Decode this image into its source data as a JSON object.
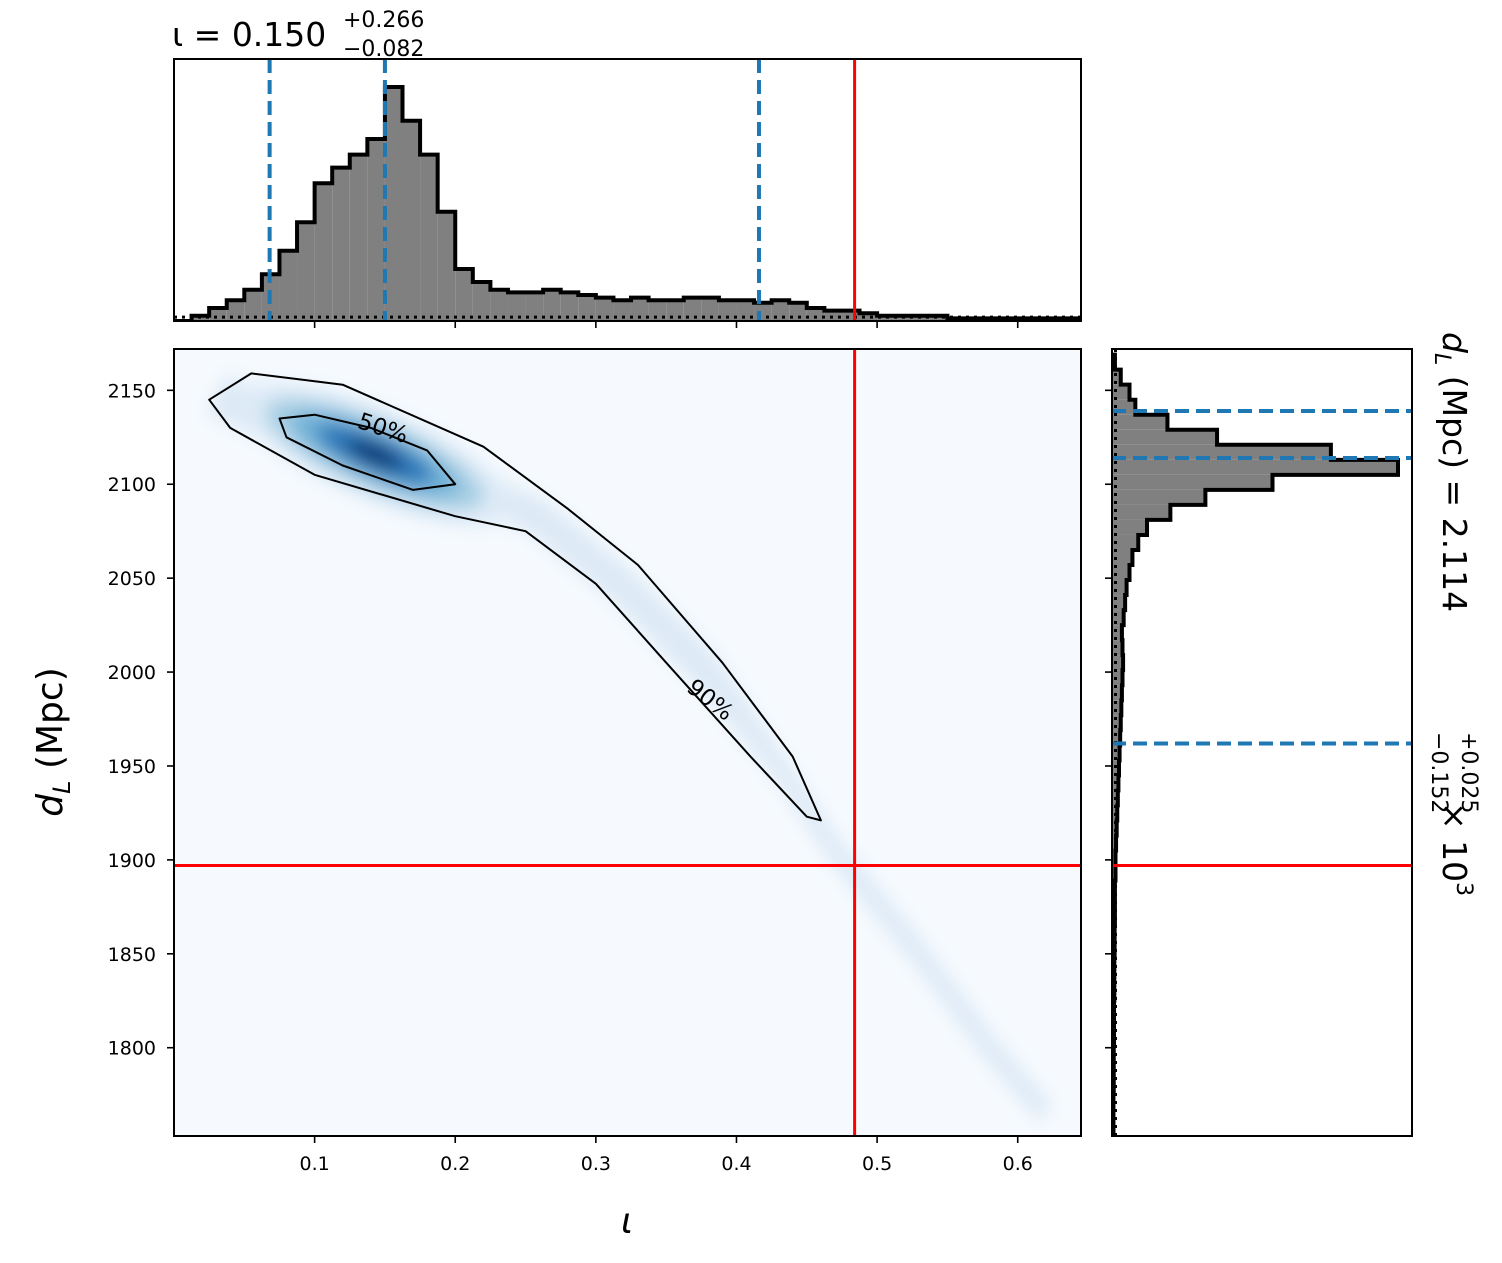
{
  "chart_data": {
    "type": "corner",
    "x_param": {
      "symbol": "ι",
      "label": "ι",
      "median": "0.150",
      "upper": "+0.266",
      "lower": "−0.082",
      "xlim": [
        0.0,
        0.645
      ],
      "ticks": [
        0.1,
        0.2,
        0.3,
        0.4,
        0.5,
        0.6
      ],
      "tick_labels": [
        "0.1",
        "0.2",
        "0.3",
        "0.4",
        "0.5",
        "0.6"
      ],
      "quantile_lines": [
        0.068,
        0.15,
        0.416
      ],
      "true_value": 0.484,
      "hist_bin_edges": [
        0.0,
        0.0125,
        0.025,
        0.0375,
        0.05,
        0.0625,
        0.075,
        0.0875,
        0.1,
        0.1125,
        0.125,
        0.1375,
        0.15,
        0.1625,
        0.175,
        0.1875,
        0.2,
        0.2125,
        0.225,
        0.2375,
        0.25,
        0.2625,
        0.275,
        0.2875,
        0.3,
        0.3125,
        0.325,
        0.3375,
        0.35,
        0.3625,
        0.375,
        0.3875,
        0.4,
        0.4125,
        0.425,
        0.4375,
        0.45,
        0.4625,
        0.475,
        0.4875,
        0.5,
        0.5125,
        0.525,
        0.5375,
        0.55,
        0.5625,
        0.575,
        0.5875,
        0.6,
        0.6125,
        0.625,
        0.6375,
        0.645
      ],
      "hist_counts": [
        0.0,
        0.02,
        0.05,
        0.08,
        0.12,
        0.18,
        0.27,
        0.38,
        0.53,
        0.59,
        0.64,
        0.7,
        0.9,
        0.77,
        0.64,
        0.42,
        0.2,
        0.15,
        0.12,
        0.11,
        0.11,
        0.12,
        0.11,
        0.1,
        0.09,
        0.08,
        0.09,
        0.08,
        0.08,
        0.09,
        0.09,
        0.08,
        0.08,
        0.07,
        0.08,
        0.07,
        0.05,
        0.04,
        0.04,
        0.03,
        0.02,
        0.02,
        0.02,
        0.02,
        0.01,
        0.01,
        0.01,
        0.01,
        0.01,
        0.01,
        0.01,
        0.01
      ],
      "prior_level": 0.015
    },
    "y_param": {
      "label_symbol": "d",
      "label_sub": "L",
      "label_unit": " (Mpc)",
      "right_label_main": "d",
      "right_label_sub": "L",
      "right_label_unit": " (Mpc) = 2.114",
      "right_upper": "+0.025",
      "right_lower": "−0.152",
      "right_scale": " × 10",
      "right_exp": "3",
      "ylim": [
        1753,
        2172
      ],
      "ticks": [
        1800,
        1850,
        1900,
        1950,
        2000,
        2050,
        2100,
        2150
      ],
      "tick_labels": [
        "1800",
        "1850",
        "1900",
        "1950",
        "2000",
        "2050",
        "2100",
        "2150"
      ],
      "quantile_lines": [
        2139,
        2114,
        1962
      ],
      "true_value": 1897,
      "hist_bin_edges": [
        1753,
        1761,
        1769,
        1777,
        1785,
        1793,
        1801,
        1809,
        1817,
        1825,
        1833,
        1841,
        1849,
        1857,
        1865,
        1873,
        1881,
        1889,
        1897,
        1905,
        1913,
        1921,
        1929,
        1937,
        1945,
        1953,
        1961,
        1969,
        1977,
        1985,
        1993,
        2001,
        2009,
        2017,
        2025,
        2033,
        2041,
        2049,
        2057,
        2065,
        2073,
        2081,
        2089,
        2097,
        2105,
        2113,
        2121,
        2129,
        2137,
        2145,
        2153,
        2161,
        2169
      ],
      "hist_counts": [
        0.005,
        0.005,
        0.005,
        0.006,
        0.006,
        0.006,
        0.007,
        0.007,
        0.007,
        0.008,
        0.008,
        0.008,
        0.009,
        0.009,
        0.01,
        0.01,
        0.01,
        0.012,
        0.012,
        0.014,
        0.016,
        0.018,
        0.02,
        0.022,
        0.024,
        0.026,
        0.028,
        0.03,
        0.032,
        0.034,
        0.036,
        0.038,
        0.036,
        0.034,
        0.04,
        0.045,
        0.05,
        0.06,
        0.07,
        0.09,
        0.12,
        0.2,
        0.32,
        0.55,
        0.98,
        0.75,
        0.36,
        0.19,
        0.08,
        0.06,
        0.03,
        0.01
      ],
      "prior_level": 0.012
    },
    "joint": {
      "colormap": "Blues",
      "peak": [
        0.15,
        2116
      ],
      "ridge": [
        [
          0.03,
          2148
        ],
        [
          0.08,
          2131
        ],
        [
          0.15,
          2116
        ],
        [
          0.2,
          2104
        ],
        [
          0.26,
          2082
        ],
        [
          0.32,
          2045
        ],
        [
          0.38,
          2000
        ],
        [
          0.43,
          1950
        ],
        [
          0.47,
          1905
        ],
        [
          0.53,
          1850
        ],
        [
          0.58,
          1800
        ],
        [
          0.62,
          1765
        ]
      ],
      "contours": [
        {
          "label": "50%",
          "points": [
            [
              0.075,
              2135
            ],
            [
              0.1,
              2137
            ],
            [
              0.14,
              2130
            ],
            [
              0.18,
              2118
            ],
            [
              0.2,
              2100
            ],
            [
              0.17,
              2097
            ],
            [
              0.12,
              2110
            ],
            [
              0.08,
              2125
            ],
            [
              0.075,
              2135
            ]
          ]
        },
        {
          "label": "90%",
          "points": [
            [
              0.055,
              2159
            ],
            [
              0.12,
              2153
            ],
            [
              0.22,
              2120
            ],
            [
              0.28,
              2087
            ],
            [
              0.33,
              2057
            ],
            [
              0.39,
              2005
            ],
            [
              0.44,
              1955
            ],
            [
              0.46,
              1921
            ],
            [
              0.45,
              1923
            ],
            [
              0.41,
              1955
            ],
            [
              0.35,
              2005
            ],
            [
              0.3,
              2047
            ],
            [
              0.25,
              2075
            ],
            [
              0.2,
              2083
            ],
            [
              0.1,
              2105
            ],
            [
              0.04,
              2130
            ],
            [
              0.025,
              2145
            ],
            [
              0.055,
              2159
            ]
          ]
        }
      ]
    }
  }
}
